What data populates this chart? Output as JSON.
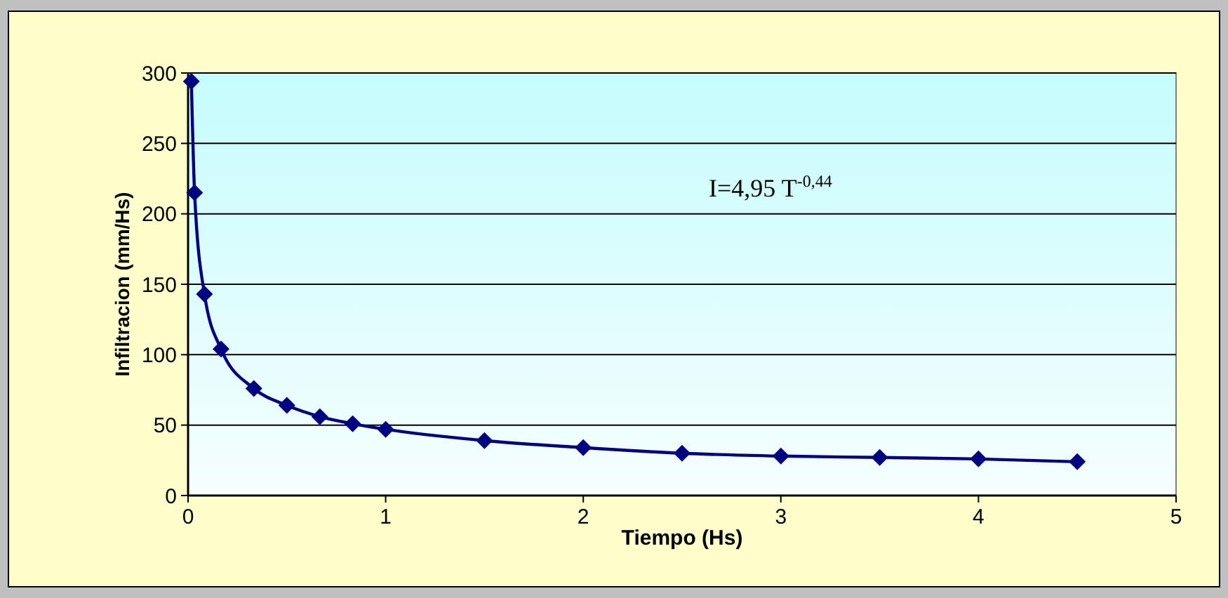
{
  "chart_data": {
    "type": "line",
    "xlabel": "Tiempo (Hs)",
    "ylabel": "Infiltracion (mm/Hs)",
    "annotations": [
      "I=4,95 T$^{-0,44}$"
    ],
    "x": [
      0.0167,
      0.033,
      0.083,
      0.167,
      0.333,
      0.5,
      0.667,
      0.833,
      1,
      1.5,
      2,
      2.5,
      3,
      3.5,
      4,
      4.5
    ],
    "series": [
      {
        "color": "#000080",
        "values": [
          294,
          215,
          143,
          104,
          76,
          64,
          56,
          51,
          47,
          39,
          34,
          30,
          28,
          27,
          26,
          24
        ]
      }
    ],
    "xlim": [
      0,
      5
    ],
    "xticks": [
      0,
      1,
      2,
      3,
      4,
      5
    ],
    "ylim": [
      0,
      300
    ],
    "yticks": [
      0,
      50,
      100,
      150,
      200,
      250,
      300
    ],
    "grid": "y",
    "marker": "diamond",
    "line_style": "solid"
  }
}
